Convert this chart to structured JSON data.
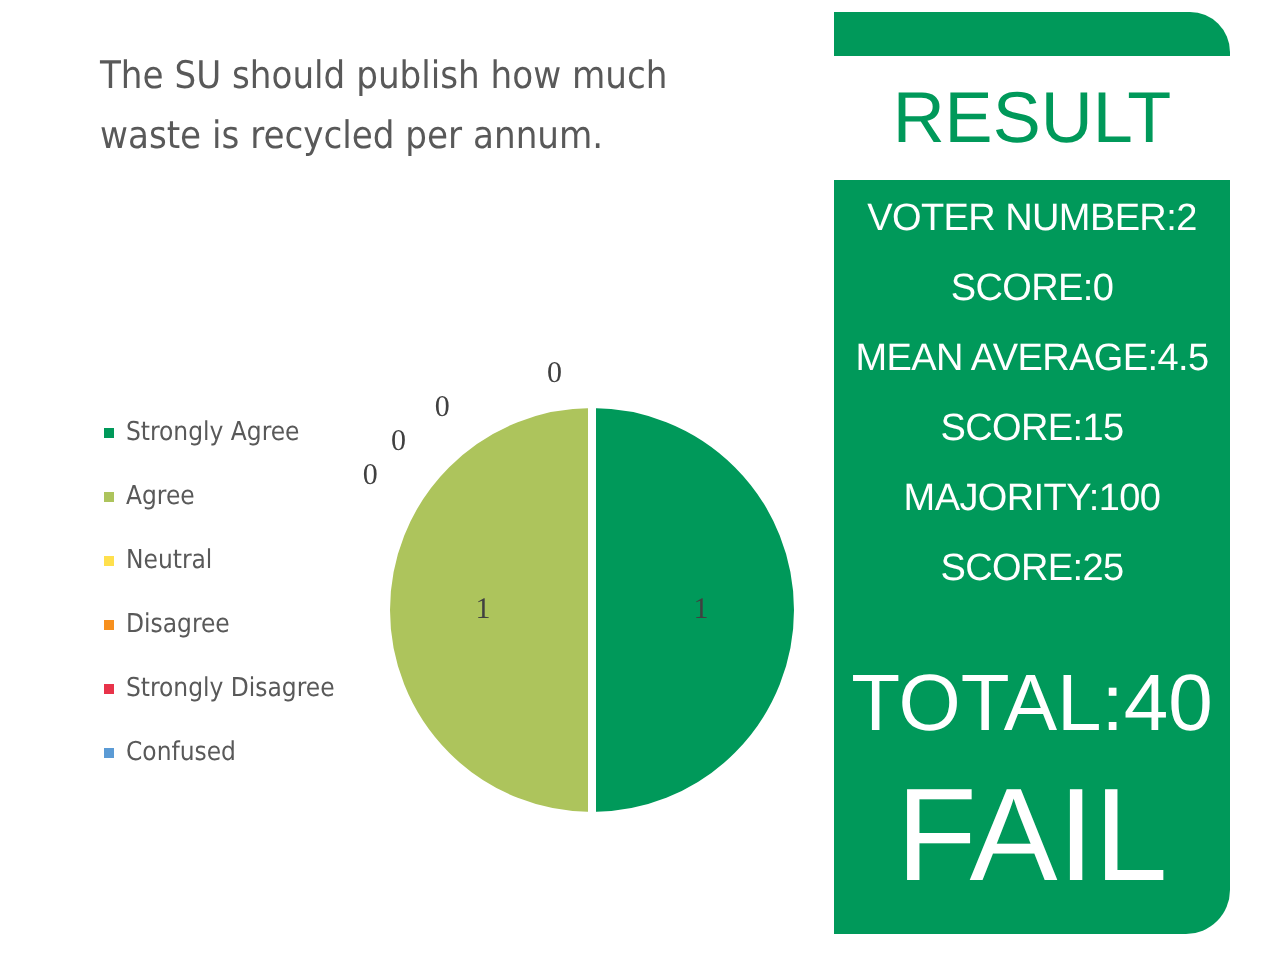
{
  "chart_data": [
    {
      "type": "pie",
      "title": "The SU should publish how much waste is recycled per annum.",
      "categories": [
        "Strongly Agree",
        "Agree",
        "Neutral",
        "Disagree",
        "Strongly Disagree",
        "Confused"
      ],
      "values": [
        1,
        1,
        0,
        0,
        0,
        0
      ],
      "colors": [
        "#00995a",
        "#adc45c",
        "#ffe04d",
        "#f7901e",
        "#e8334a",
        "#5b9bd5"
      ],
      "value_labels": [
        "1",
        "1",
        "0",
        "0",
        "0",
        "0"
      ],
      "legend": "left"
    },
    {
      "type": "other",
      "title": "RESULT",
      "annotations": [
        "VOTER NUMBER:2",
        "SCORE:0",
        "MEAN AVERAGE:4.5",
        "SCORE:15",
        "MAJORITY:100",
        "SCORE:25",
        "TOTAL:40",
        "FAIL"
      ]
    }
  ]
}
